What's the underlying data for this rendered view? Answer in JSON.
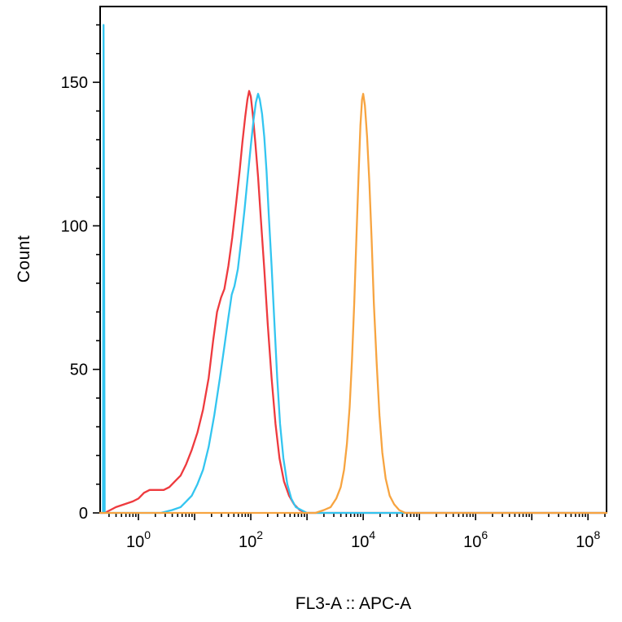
{
  "chart_data": {
    "type": "line",
    "title": "",
    "xlabel": "FL3-A :: APC-A",
    "ylabel": "Count",
    "x_scale": "log10",
    "x_tick_base": "10",
    "x_tick_exponents": [
      0,
      2,
      4,
      6,
      8
    ],
    "x_range_log": [
      -0.681,
      8.33
    ],
    "y_range": [
      0,
      176.4
    ],
    "y_major_ticks": [
      0,
      50,
      100,
      150
    ],
    "y_minor_step": 10,
    "grid": "off",
    "legend": "none",
    "series": [
      {
        "name": "red",
        "color": "#ee3a3e",
        "points": [
          [
            -0.68,
            0
          ],
          [
            -0.6,
            0
          ],
          [
            -0.5,
            1
          ],
          [
            -0.4,
            2
          ],
          [
            -0.25,
            3
          ],
          [
            -0.1,
            4
          ],
          [
            0.0,
            5
          ],
          [
            0.1,
            7
          ],
          [
            0.2,
            8
          ],
          [
            0.35,
            8
          ],
          [
            0.45,
            8
          ],
          [
            0.55,
            9
          ],
          [
            0.65,
            11
          ],
          [
            0.75,
            13
          ],
          [
            0.85,
            17
          ],
          [
            0.95,
            22
          ],
          [
            1.05,
            28
          ],
          [
            1.15,
            36
          ],
          [
            1.25,
            47
          ],
          [
            1.33,
            60
          ],
          [
            1.4,
            70
          ],
          [
            1.47,
            75
          ],
          [
            1.53,
            78
          ],
          [
            1.6,
            86
          ],
          [
            1.67,
            96
          ],
          [
            1.74,
            108
          ],
          [
            1.8,
            119
          ],
          [
            1.85,
            129
          ],
          [
            1.9,
            138
          ],
          [
            1.94,
            144
          ],
          [
            1.97,
            147
          ],
          [
            2.0,
            145
          ],
          [
            2.04,
            138
          ],
          [
            2.08,
            129
          ],
          [
            2.13,
            117
          ],
          [
            2.18,
            102
          ],
          [
            2.24,
            85
          ],
          [
            2.3,
            66
          ],
          [
            2.37,
            47
          ],
          [
            2.44,
            31
          ],
          [
            2.51,
            19
          ],
          [
            2.59,
            11
          ],
          [
            2.68,
            6
          ],
          [
            2.77,
            3
          ],
          [
            2.87,
            1
          ],
          [
            2.97,
            0
          ],
          [
            8.33,
            0
          ]
        ]
      },
      {
        "name": "cyan",
        "color": "#33c5f0",
        "points": [
          [
            -0.68,
            0
          ],
          [
            -0.63,
            0
          ],
          [
            -0.62,
            170
          ],
          [
            -0.6,
            0
          ],
          [
            0.4,
            0
          ],
          [
            0.6,
            1
          ],
          [
            0.75,
            2
          ],
          [
            0.85,
            4
          ],
          [
            0.95,
            6
          ],
          [
            1.05,
            10
          ],
          [
            1.15,
            15
          ],
          [
            1.25,
            23
          ],
          [
            1.35,
            34
          ],
          [
            1.45,
            47
          ],
          [
            1.53,
            58
          ],
          [
            1.6,
            68
          ],
          [
            1.66,
            76
          ],
          [
            1.71,
            79
          ],
          [
            1.77,
            85
          ],
          [
            1.83,
            95
          ],
          [
            1.89,
            106
          ],
          [
            1.95,
            118
          ],
          [
            2.0,
            128
          ],
          [
            2.05,
            137
          ],
          [
            2.09,
            143
          ],
          [
            2.13,
            146
          ],
          [
            2.16,
            144
          ],
          [
            2.2,
            139
          ],
          [
            2.24,
            131
          ],
          [
            2.28,
            119
          ],
          [
            2.32,
            104
          ],
          [
            2.37,
            86
          ],
          [
            2.42,
            66
          ],
          [
            2.47,
            47
          ],
          [
            2.52,
            31
          ],
          [
            2.58,
            19
          ],
          [
            2.65,
            10
          ],
          [
            2.72,
            5
          ],
          [
            2.8,
            2
          ],
          [
            2.9,
            1
          ],
          [
            3.0,
            0
          ],
          [
            8.33,
            0
          ]
        ]
      },
      {
        "name": "orange",
        "color": "#f7a440",
        "points": [
          [
            -0.68,
            0
          ],
          [
            3.15,
            0
          ],
          [
            3.3,
            1
          ],
          [
            3.42,
            2
          ],
          [
            3.52,
            5
          ],
          [
            3.6,
            9
          ],
          [
            3.66,
            15
          ],
          [
            3.71,
            24
          ],
          [
            3.76,
            37
          ],
          [
            3.8,
            53
          ],
          [
            3.84,
            73
          ],
          [
            3.88,
            96
          ],
          [
            3.92,
            119
          ],
          [
            3.95,
            135
          ],
          [
            3.98,
            144
          ],
          [
            4.0,
            146
          ],
          [
            4.03,
            142
          ],
          [
            4.07,
            131
          ],
          [
            4.11,
            115
          ],
          [
            4.15,
            95
          ],
          [
            4.19,
            73
          ],
          [
            4.24,
            52
          ],
          [
            4.29,
            34
          ],
          [
            4.34,
            21
          ],
          [
            4.4,
            12
          ],
          [
            4.47,
            6
          ],
          [
            4.55,
            3
          ],
          [
            4.64,
            1
          ],
          [
            4.75,
            0
          ],
          [
            8.33,
            0
          ]
        ]
      }
    ]
  }
}
